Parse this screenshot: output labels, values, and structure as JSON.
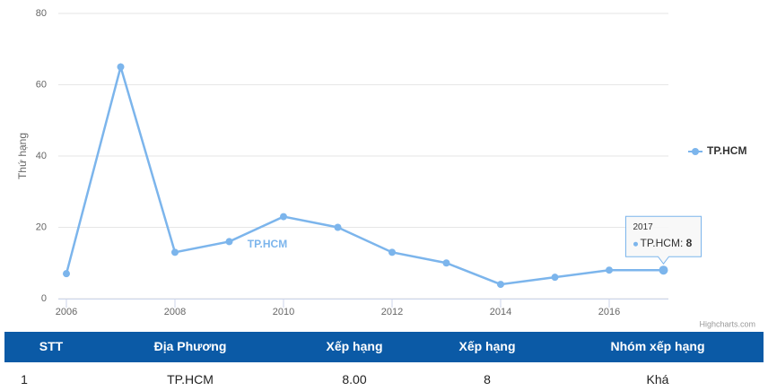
{
  "chart_data": {
    "type": "line",
    "y_axis_title": "Thứ hạng",
    "x": [
      2006,
      2007,
      2008,
      2009,
      2010,
      2011,
      2012,
      2013,
      2014,
      2015,
      2016,
      2017
    ],
    "series": [
      {
        "name": "TP.HCM",
        "color": "#7cb5ec",
        "values": [
          7,
          65,
          13,
          16,
          23,
          20,
          13,
          10,
          4,
          6,
          8,
          8
        ]
      }
    ],
    "xlim": [
      2006,
      2017
    ],
    "xticks": [
      2006,
      2008,
      2010,
      2012,
      2014,
      2016
    ],
    "ylim": [
      0,
      80
    ],
    "yticks": [
      0,
      20,
      40,
      60,
      80
    ],
    "grid": true,
    "legend": "right",
    "credits": "Highcharts.com"
  },
  "table": {
    "header": [
      "STT",
      "Địa Phương",
      "Xếp hạng",
      "Xếp hạng",
      "Nhóm xếp hạng"
    ],
    "rows": [
      [
        "1",
        "TP.HCM",
        "8.00",
        "8",
        "Khá"
      ]
    ]
  }
}
